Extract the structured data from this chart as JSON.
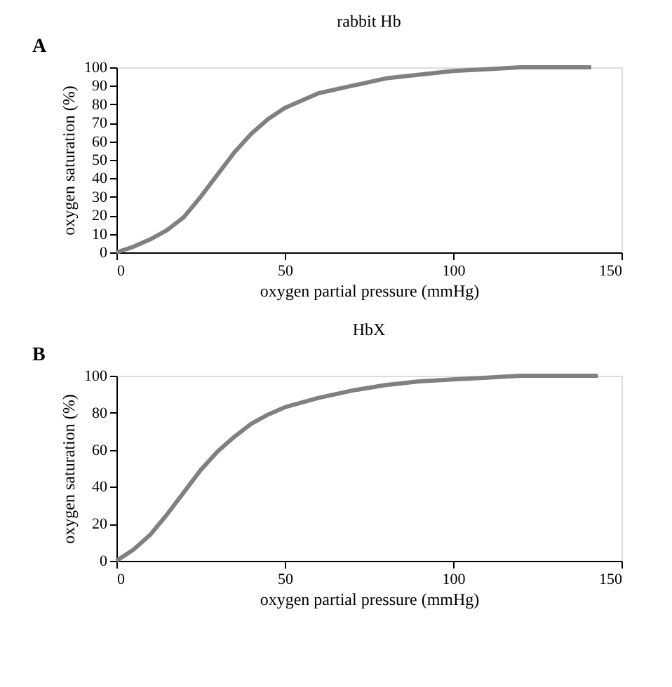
{
  "chart_data": [
    {
      "type": "line",
      "title": "rabbit Hb",
      "xlabel": "oxygen partial pressure (mmHg)",
      "ylabel": "oxygen saturation (%)",
      "annotations": [
        "A"
      ],
      "x": [
        0,
        5,
        10,
        15,
        20,
        25,
        30,
        35,
        40,
        45,
        50,
        55,
        60,
        70,
        80,
        90,
        100,
        110,
        120,
        141
      ],
      "series": [
        {
          "color": "#808080",
          "values": [
            0,
            3,
            7,
            12,
            19,
            30,
            42,
            54,
            64,
            72,
            78,
            82,
            86,
            90,
            94,
            96,
            98,
            99,
            100,
            100
          ]
        }
      ],
      "xlim": [
        0,
        150
      ],
      "xticks": [
        0,
        50,
        100,
        150
      ],
      "ylim": [
        0,
        100
      ],
      "yticks": [
        0,
        10,
        20,
        30,
        40,
        50,
        60,
        70,
        80,
        90,
        100
      ],
      "grid": false,
      "marker": "none",
      "line_style": "solid"
    },
    {
      "type": "line",
      "title": "HbX",
      "xlabel": "oxygen partial pressure (mmHg)",
      "ylabel": "oxygen saturation (%)",
      "annotations": [
        "B"
      ],
      "x": [
        0,
        5,
        10,
        15,
        20,
        25,
        30,
        35,
        40,
        45,
        50,
        60,
        70,
        80,
        90,
        100,
        110,
        120,
        143
      ],
      "series": [
        {
          "color": "#808080",
          "values": [
            0,
            6,
            14,
            25,
            37,
            49,
            59,
            67,
            74,
            79,
            83,
            88,
            92,
            95,
            97,
            98,
            99,
            100,
            100
          ]
        }
      ],
      "xlim": [
        0,
        150
      ],
      "xticks": [
        0,
        50,
        100,
        150
      ],
      "ylim": [
        0,
        100
      ],
      "yticks": [
        0,
        20,
        40,
        60,
        80,
        100
      ],
      "grid": false,
      "marker": "none",
      "line_style": "solid"
    }
  ]
}
